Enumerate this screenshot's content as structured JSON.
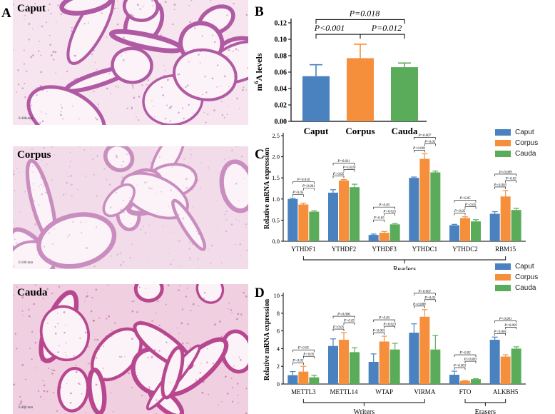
{
  "histology": {
    "letter": "A",
    "panels": [
      {
        "label": "Caput",
        "scale": "0.400 mm",
        "seed": 3,
        "bg": "#f6e4ef",
        "fg": "#b05aa4"
      },
      {
        "label": "Corpus",
        "scale": "0.100 mm",
        "seed": 7,
        "bg": "#f3dcea",
        "fg": "#c98dbf"
      },
      {
        "label": "Cauda",
        "scale": "0.400 mm",
        "seed": 11,
        "bg": "#f0cfe0",
        "fg": "#b8478f"
      }
    ]
  },
  "colors": {
    "caput": "#4a82c0",
    "corpus": "#f58f3c",
    "cauda": "#5aac5a"
  },
  "legend": [
    "Caput",
    "Corpus",
    "Cauda"
  ],
  "chart_data": [
    {
      "id": "B",
      "type": "bar",
      "letter": "B",
      "categories": [
        "Caput",
        "Corpus",
        "Cauda"
      ],
      "values": [
        0.055,
        0.077,
        0.066
      ],
      "errors": [
        0.014,
        0.017,
        0.005
      ],
      "ylabel_main": "m",
      "ylabel_sup": "6",
      "ylabel_rest": "A levels",
      "ylim": [
        0,
        0.12
      ],
      "yticks": [
        "0.00",
        "0.02",
        "0.04",
        "0.06",
        "0.08",
        "0.10",
        "0.12"
      ],
      "annotations": [
        {
          "from": 0,
          "to": 1,
          "text": "P<0.001"
        },
        {
          "from": 1,
          "to": 2,
          "text": "P=0.012"
        },
        {
          "from": 0,
          "to": 2,
          "text": "P=0.018"
        }
      ]
    },
    {
      "id": "C",
      "type": "bar",
      "letter": "C",
      "categories": [
        "YTHDF1",
        "YTHDF2",
        "YTHDF3",
        "YTHDC1",
        "YTHDC2",
        "RBM15"
      ],
      "series": [
        {
          "name": "Caput",
          "values": [
            1.0,
            1.15,
            0.15,
            1.5,
            0.38,
            0.65
          ],
          "errors": [
            0.02,
            0.07,
            0.02,
            0.02,
            0.02,
            0.05
          ]
        },
        {
          "name": "Corpus",
          "values": [
            0.87,
            1.44,
            0.2,
            1.95,
            0.55,
            1.06
          ],
          "errors": [
            0.03,
            0.02,
            0.03,
            0.12,
            0.03,
            0.14
          ]
        },
        {
          "name": "Cauda",
          "values": [
            0.7,
            1.28,
            0.4,
            1.63,
            0.47,
            0.74
          ],
          "errors": [
            0.02,
            0.07,
            0.02,
            0.03,
            0.04,
            0.04
          ]
        }
      ],
      "ylabel": "Relative mRNA expression",
      "ylim": [
        0,
        2.5
      ],
      "yticks": [
        "0.0",
        "0.5",
        "1.0",
        "1.5",
        "2.0",
        "2.5"
      ],
      "pvalues": [
        [
          "P>0.05",
          "P<0.001",
          "P=0.016"
        ],
        [
          "P>0.05",
          "P=0.026",
          "P=0.011"
        ],
        [
          "P>0.05",
          "P=0.025",
          "P>0.05"
        ],
        [
          "P=0.001",
          "P>0.05",
          "P=0.007"
        ],
        [
          "P>0.05",
          "P>0.05",
          "P>0.05"
        ],
        [
          "P=0.003",
          "P>0.05",
          "P=0.009"
        ]
      ],
      "groups": [
        {
          "label": "Readers",
          "from": 0,
          "to": 5
        }
      ]
    },
    {
      "id": "D",
      "type": "bar",
      "letter": "D",
      "categories": [
        "METTL3",
        "METTL14",
        "WTAP",
        "VIRMA",
        "FTO",
        "ALKBH5"
      ],
      "series": [
        {
          "name": "Caput",
          "values": [
            1.0,
            4.3,
            2.5,
            5.8,
            1.05,
            5.0
          ],
          "errors": [
            0.4,
            0.8,
            0.9,
            1.0,
            0.4,
            0.3
          ]
        },
        {
          "name": "Corpus",
          "values": [
            1.4,
            5.0,
            4.8,
            7.6,
            0.35,
            3.1
          ],
          "errors": [
            0.6,
            0.8,
            0.6,
            0.8,
            0.05,
            0.2
          ]
        },
        {
          "name": "Cauda",
          "values": [
            0.75,
            3.6,
            3.9,
            3.9,
            0.55,
            4.0
          ],
          "errors": [
            0.25,
            0.5,
            0.7,
            1.6,
            0.05,
            0.2
          ]
        }
      ],
      "ylabel": "Relative mRNA expression",
      "ylim": [
        0,
        10
      ],
      "yticks": [
        "0",
        "2",
        "4",
        "6",
        "8",
        "10"
      ],
      "pvalues": [
        [
          "P>0.05",
          "P>0.05",
          "P>0.05"
        ],
        [
          "P>0.05",
          "P>0.05",
          "P=0.006"
        ],
        [
          "P<0.001",
          "P=0.023",
          "P>0.05"
        ],
        [
          "P=0.008",
          "P>0.05",
          "P=0.001"
        ],
        [
          "P<0.001",
          "P=0.003",
          "P>0.05"
        ],
        [
          "P<0.001",
          "P<0.001",
          "P<0.001"
        ]
      ],
      "groups": [
        {
          "label": "Writers",
          "from": 0,
          "to": 3
        },
        {
          "label": "Erasers",
          "from": 4,
          "to": 5
        }
      ]
    }
  ]
}
